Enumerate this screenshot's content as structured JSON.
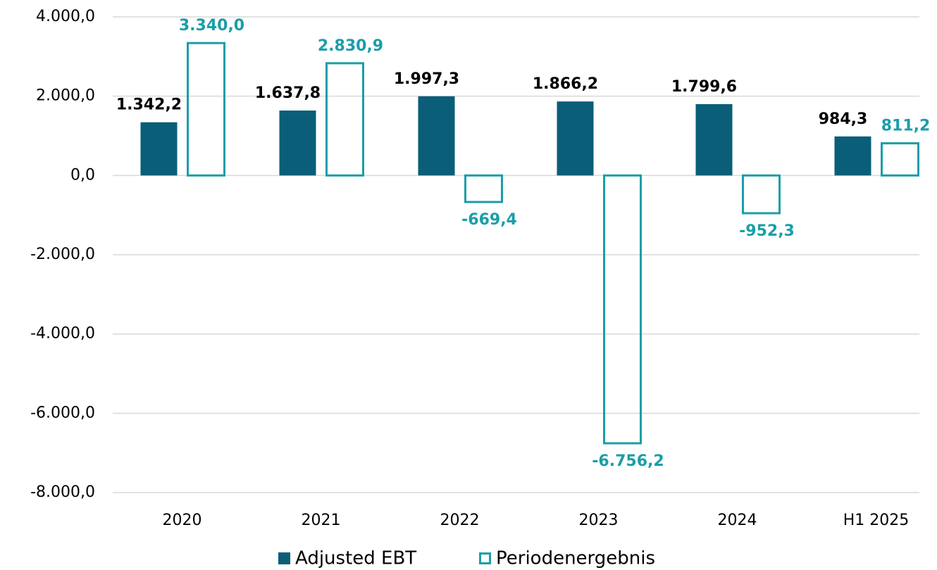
{
  "chart_data": {
    "type": "bar",
    "categories": [
      "2020",
      "2021",
      "2022",
      "2023",
      "2024",
      "H1 2025"
    ],
    "series": [
      {
        "name": "Adjusted EBT",
        "color": "#0b5e78",
        "values": [
          1342.2,
          1637.8,
          1997.3,
          1866.2,
          1799.6,
          984.3
        ],
        "value_labels": [
          "1.342,2",
          "1.637,8",
          "1.997,3",
          "1.866,2",
          "1.799,6",
          "984,3"
        ]
      },
      {
        "name": "Periodenergebnis",
        "color": "#1a9ea8",
        "values": [
          3340.0,
          2830.9,
          -669.4,
          -6756.2,
          -952.3,
          811.2
        ],
        "value_labels": [
          "3.340,0",
          "2.830,9",
          "-669,4",
          "-6.756,2",
          "-952,3",
          "811,2"
        ]
      }
    ],
    "ylim": [
      -8000,
      4000
    ],
    "yticks": [
      {
        "value": -8000,
        "label": "-8.000,0"
      },
      {
        "value": -6000,
        "label": "-6.000,0"
      },
      {
        "value": -4000,
        "label": "-4.000,0"
      },
      {
        "value": -2000,
        "label": "-2.000,0"
      },
      {
        "value": 0,
        "label": "0,0"
      },
      {
        "value": 2000,
        "label": "2.000,0"
      },
      {
        "value": 4000,
        "label": "4.000,0"
      }
    ],
    "grid": true
  }
}
